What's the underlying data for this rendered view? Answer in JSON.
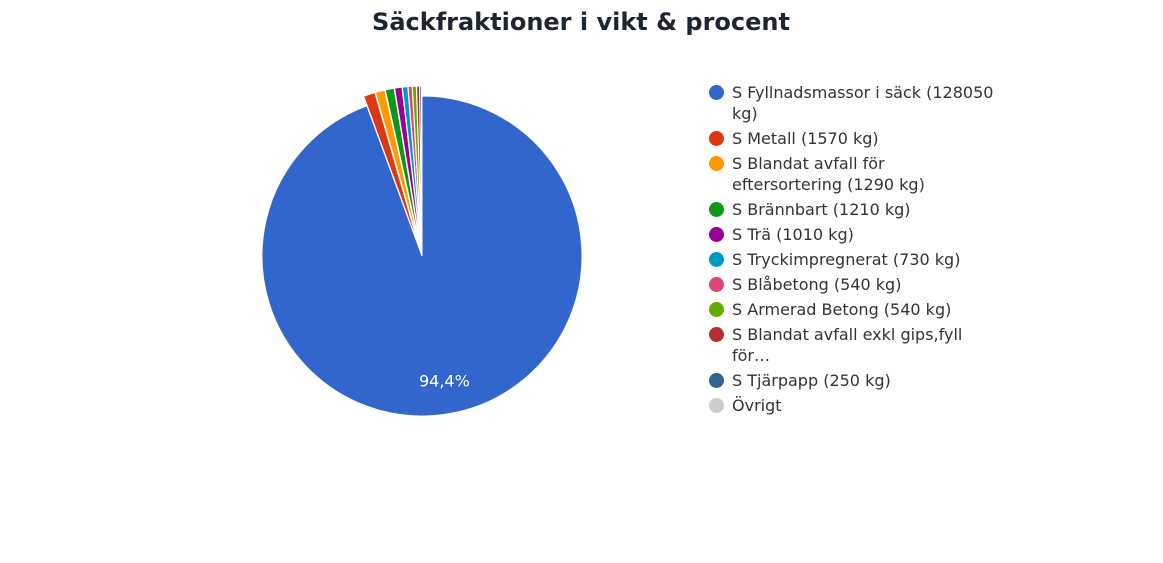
{
  "chart_data": {
    "type": "pie",
    "title": "Säckfraktioner i vikt & procent",
    "categories": [
      "S Fyllnadsmassor i säck (128050 kg)",
      "S Metall (1570 kg)",
      "S Blandat avfall för eftersortering (1290 kg)",
      "S Brännbart (1210 kg)",
      "S Trä (1010 kg)",
      "S Tryckimpregnerat (730 kg)",
      "S Blåbetong (540 kg)",
      "S Armerad Betong (540 kg)",
      "S Blandat avfall exkl gips,fyll för…",
      "S Tjärpapp (250 kg)",
      "Övrigt"
    ],
    "values": [
      94.4,
      1.16,
      0.95,
      0.89,
      0.74,
      0.54,
      0.4,
      0.4,
      0.29,
      0.18,
      0.05
    ],
    "value_labels": [
      "94,4%",
      null,
      null,
      null,
      null,
      null,
      null,
      null,
      null,
      null,
      null
    ],
    "colors": [
      "#3366cc",
      "#dc3912",
      "#ff9900",
      "#109618",
      "#990099",
      "#0099c6",
      "#dd4477",
      "#66aa00",
      "#b82e2e",
      "#316395",
      "#cccccc"
    ],
    "legend": "right"
  }
}
